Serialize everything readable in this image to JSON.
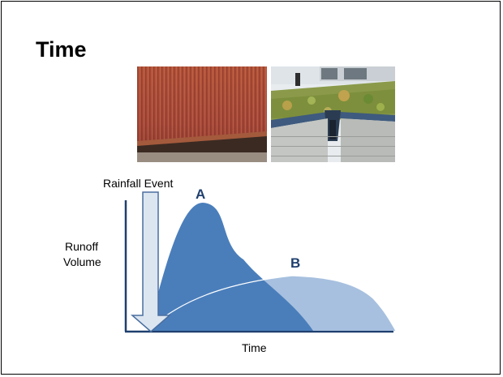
{
  "slide": {
    "title": "Time"
  },
  "images": {
    "left": "corrugated-metal-roof-photo",
    "right": "green-roof-photo"
  },
  "diagram": {
    "rainfall_label": "Rainfall Event",
    "y_axis_label_line1": "Runoff",
    "y_axis_label_line2": "Volume",
    "x_axis_label": "Time",
    "curve_a_label": "A",
    "curve_b_label": "B",
    "colors": {
      "curve_a": "#4a7ebb",
      "curve_b": "#a7c0df",
      "overlap": "#4a7ebb",
      "arrow_fill": "#dce6f1",
      "arrow_stroke": "#4a6fa0",
      "label_color": "#1f3f6e",
      "axis": "#1f3f6e"
    }
  }
}
